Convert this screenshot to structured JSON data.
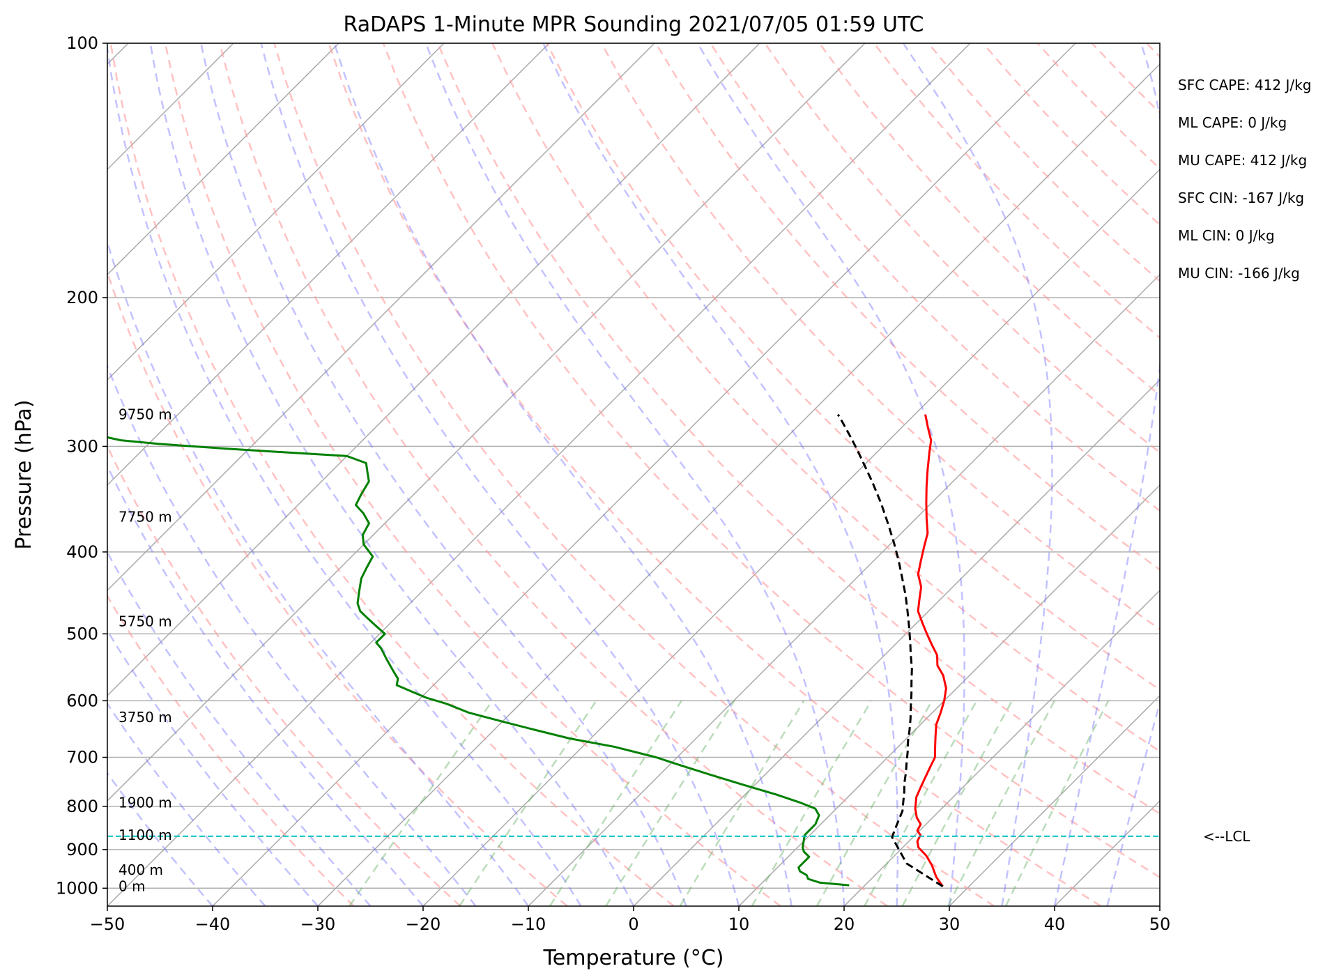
{
  "chart_data": {
    "type": "line",
    "title": "RaDAPS 1-Minute MPR Sounding 2021/07/05 01:59 UTC",
    "xlabel": "Temperature (°C)",
    "ylabel": "Pressure (hPa)",
    "xlim": [
      -50,
      50
    ],
    "ylim": [
      1050,
      100
    ],
    "y_scale": "log",
    "x_ticks": [
      -50,
      -40,
      -30,
      -20,
      -10,
      0,
      10,
      20,
      30,
      40,
      50
    ],
    "x_tick_labels": [
      "−50",
      "−40",
      "−30",
      "−20",
      "−10",
      "0",
      "10",
      "20",
      "30",
      "40",
      "50"
    ],
    "y_ticks": [
      100,
      200,
      300,
      400,
      500,
      600,
      700,
      800,
      900,
      1000
    ],
    "y_tick_labels": [
      "100",
      "200",
      "300",
      "400",
      "500",
      "600",
      "700",
      "800",
      "900",
      "1000"
    ],
    "grid": true,
    "skew_t": true,
    "series": [
      {
        "color": "#ff0000",
        "points": [
          [
            27.5,
            995
          ],
          [
            26.0,
            970
          ],
          [
            25.5,
            960
          ],
          [
            24.5,
            940
          ],
          [
            23.0,
            915
          ],
          [
            21.5,
            895
          ],
          [
            20.8,
            880
          ],
          [
            20.5,
            865
          ],
          [
            19.8,
            855
          ],
          [
            19.5,
            840
          ],
          [
            18.5,
            825
          ],
          [
            17.5,
            805
          ],
          [
            16.5,
            780
          ],
          [
            16.0,
            760
          ],
          [
            15.5,
            740
          ],
          [
            15.0,
            720
          ],
          [
            14.5,
            700
          ],
          [
            13.5,
            680
          ],
          [
            12.5,
            660
          ],
          [
            11.5,
            640
          ],
          [
            10.8,
            620
          ],
          [
            10.0,
            600
          ],
          [
            9.0,
            580
          ],
          [
            7.5,
            560
          ],
          [
            6.0,
            545
          ],
          [
            5.0,
            530
          ],
          [
            3.5,
            515
          ],
          [
            2.0,
            500
          ],
          [
            0.5,
            485
          ],
          [
            -1.0,
            470
          ],
          [
            -2.0,
            455
          ],
          [
            -3.0,
            440
          ],
          [
            -4.5,
            425
          ],
          [
            -5.5,
            410
          ],
          [
            -6.5,
            395
          ],
          [
            -7.5,
            380
          ],
          [
            -9.0,
            365
          ],
          [
            -10.5,
            350
          ],
          [
            -12.0,
            335
          ],
          [
            -13.5,
            320
          ],
          [
            -15.0,
            305
          ],
          [
            -16.0,
            295
          ],
          [
            -17.5,
            285
          ],
          [
            -19.0,
            275
          ]
        ]
      },
      {
        "color": "#008000",
        "points": [
          [
            18.5,
            992
          ],
          [
            15.5,
            985
          ],
          [
            14.0,
            975
          ],
          [
            13.5,
            965
          ],
          [
            12.5,
            955
          ],
          [
            12.0,
            945
          ],
          [
            12.0,
            930
          ],
          [
            12.0,
            918
          ],
          [
            11.0,
            905
          ],
          [
            10.5,
            895
          ],
          [
            10.0,
            880
          ],
          [
            9.5,
            865
          ],
          [
            9.5,
            850
          ],
          [
            9.5,
            840
          ],
          [
            9.0,
            820
          ],
          [
            8.0,
            805
          ],
          [
            6.0,
            792
          ],
          [
            3.0,
            775
          ],
          [
            -1.0,
            755
          ],
          [
            -5.0,
            735
          ],
          [
            -9.0,
            715
          ],
          [
            -12.0,
            700
          ],
          [
            -17.0,
            680
          ],
          [
            -22.0,
            665
          ],
          [
            -26.0,
            650
          ],
          [
            -30.0,
            635
          ],
          [
            -34.0,
            620
          ],
          [
            -37.0,
            605
          ],
          [
            -39.5,
            595
          ],
          [
            -41.5,
            585
          ],
          [
            -43.5,
            575
          ],
          [
            -44.0,
            565
          ],
          [
            -45.0,
            555
          ],
          [
            -46.0,
            545
          ],
          [
            -47.0,
            535
          ],
          [
            -48.5,
            520
          ],
          [
            -49.5,
            512
          ],
          [
            -49.5,
            500
          ],
          [
            -51.0,
            490
          ],
          [
            -52.5,
            480
          ],
          [
            -54.0,
            470
          ],
          [
            -55.0,
            460
          ],
          [
            -56.0,
            445
          ],
          [
            -57.0,
            430
          ],
          [
            -57.5,
            418
          ],
          [
            -58.0,
            405
          ],
          [
            -60.0,
            392
          ],
          [
            -61.0,
            382
          ],
          [
            -61.5,
            370
          ],
          [
            -63.0,
            360
          ],
          [
            -64.5,
            352
          ],
          [
            -65.0,
            342
          ],
          [
            -65.5,
            330
          ],
          [
            -66.5,
            322
          ],
          [
            -67.5,
            314
          ],
          [
            -70.0,
            308
          ],
          [
            -82.0,
            302
          ],
          [
            -89.0,
            298
          ],
          [
            -93.0,
            295
          ],
          [
            -95.0,
            292
          ],
          [
            -96.0,
            288
          ],
          [
            -100.0,
            283
          ]
        ]
      },
      {
        "color": "#000000",
        "dashed": true,
        "points": [
          [
            27.5,
            995
          ],
          [
            21.9,
            935
          ],
          [
            18.0,
            870
          ],
          [
            17.5,
            850
          ],
          [
            17.0,
            830
          ],
          [
            16.5,
            810
          ],
          [
            15.7,
            790
          ],
          [
            14.9,
            770
          ],
          [
            14.0,
            750
          ],
          [
            13.2,
            730
          ],
          [
            12.3,
            710
          ],
          [
            11.4,
            690
          ],
          [
            10.4,
            670
          ],
          [
            9.5,
            650
          ],
          [
            8.5,
            630
          ],
          [
            7.4,
            610
          ],
          [
            6.3,
            590
          ],
          [
            5.1,
            570
          ],
          [
            3.9,
            550
          ],
          [
            2.5,
            530
          ],
          [
            1.1,
            510
          ],
          [
            -0.4,
            490
          ],
          [
            -2.0,
            470
          ],
          [
            -3.7,
            450
          ],
          [
            -5.6,
            430
          ],
          [
            -7.6,
            410
          ],
          [
            -9.8,
            390
          ],
          [
            -12.2,
            370
          ],
          [
            -14.8,
            350
          ],
          [
            -17.7,
            330
          ],
          [
            -20.9,
            310
          ],
          [
            -22.6,
            300
          ],
          [
            -24.4,
            290
          ],
          [
            -26.3,
            280
          ],
          [
            -27.3,
            275
          ]
        ]
      }
    ],
    "lcl": {
      "pressure": 868,
      "label": "<--LCL",
      "color": "#00bfbf"
    },
    "heights": [
      {
        "label": "9750 m",
        "pressure": 276
      },
      {
        "label": "7750 m",
        "pressure": 365
      },
      {
        "label": "5750 m",
        "pressure": 485
      },
      {
        "label": "3750 m",
        "pressure": 630
      },
      {
        "label": "1900 m",
        "pressure": 795
      },
      {
        "label": "1100 m",
        "pressure": 868
      },
      {
        "label": "400 m",
        "pressure": 955
      },
      {
        "label": "0 m",
        "pressure": 998
      }
    ],
    "annotations": [
      "SFC CAPE: 412 J/kg",
      "ML CAPE: 0 J/kg",
      "MU CAPE: 412 J/kg",
      "SFC CIN: -167 J/kg",
      "ML CIN: 0 J/kg",
      "MU CIN: -166 J/kg"
    ]
  }
}
